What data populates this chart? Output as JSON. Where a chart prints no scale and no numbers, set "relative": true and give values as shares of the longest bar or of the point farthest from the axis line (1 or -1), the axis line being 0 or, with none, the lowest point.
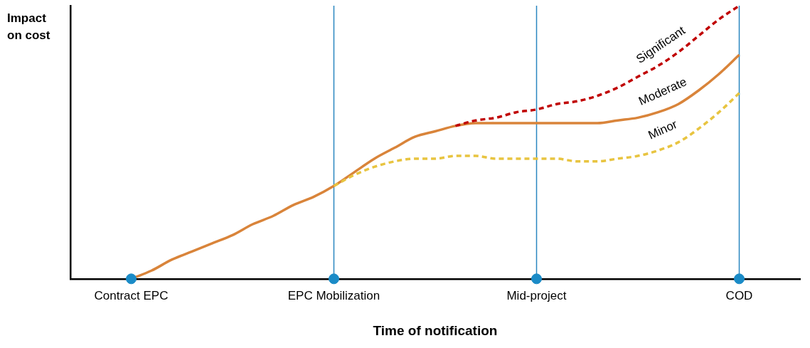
{
  "chart_data": {
    "type": "line",
    "relative": true,
    "xlabel": "Time of notification",
    "ylabel": "Impact on cost",
    "categories": [
      null,
      null,
      null,
      "Contract EPC",
      null,
      null,
      null,
      null,
      null,
      null,
      null,
      null,
      null,
      "EPC Mobilization",
      null,
      null,
      null,
      null,
      null,
      null,
      null,
      null,
      null,
      "Mid-project",
      null,
      null,
      null,
      null,
      null,
      null,
      null,
      null,
      null,
      "COD",
      null,
      null,
      null
    ],
    "ref_lines": [
      {
        "axis": "x",
        "value": "EPC Mobilization",
        "color": "#2a86c0"
      },
      {
        "axis": "x",
        "value": "Mid-project",
        "color": "#2a86c0"
      },
      {
        "axis": "x",
        "value": "COD",
        "color": "#2a86c0"
      }
    ],
    "grid": false,
    "legend": false,
    "marker": "none",
    "series": [
      {
        "name": "Significant",
        "color": "#c00000",
        "line_style": "dashed",
        "values": [
          null,
          null,
          null,
          null,
          null,
          null,
          null,
          null,
          null,
          null,
          null,
          null,
          null,
          null,
          null,
          null,
          null,
          null,
          null,
          0.56,
          0.58,
          0.59,
          0.61,
          0.62,
          0.64,
          0.65,
          0.67,
          0.7,
          0.74,
          0.78,
          0.83,
          0.89,
          0.95,
          1.0,
          null,
          null,
          null
        ]
      },
      {
        "name": "Minor",
        "color": "#e8c440",
        "line_style": "dashed",
        "values": [
          null,
          null,
          null,
          null,
          null,
          null,
          null,
          null,
          null,
          null,
          null,
          null,
          null,
          0.34,
          0.38,
          0.41,
          0.43,
          0.44,
          0.44,
          0.45,
          0.45,
          0.44,
          0.44,
          0.44,
          0.44,
          0.43,
          0.43,
          0.44,
          0.45,
          0.47,
          0.5,
          0.55,
          0.61,
          0.68,
          null,
          null,
          null
        ]
      },
      {
        "name": "Moderate",
        "color": "#d9843a",
        "line_style": "solid",
        "values": [
          null,
          null,
          null,
          0,
          0.03,
          0.07,
          0.1,
          0.13,
          0.16,
          0.2,
          0.23,
          0.27,
          0.3,
          0.34,
          0.39,
          0.44,
          0.48,
          0.52,
          0.54,
          0.56,
          0.57,
          0.57,
          0.57,
          0.57,
          0.57,
          0.57,
          0.57,
          0.58,
          0.59,
          0.61,
          0.64,
          0.69,
          0.75,
          0.82,
          null,
          null,
          null
        ]
      },
      {
        "type": "scatter",
        "color": "#1a8bc7",
        "marker": "circle",
        "values": [
          null,
          null,
          null,
          0,
          null,
          null,
          null,
          null,
          null,
          null,
          null,
          null,
          null,
          0,
          null,
          null,
          null,
          null,
          null,
          null,
          null,
          null,
          null,
          0,
          null,
          null,
          null,
          null,
          null,
          null,
          null,
          null,
          null,
          0,
          null,
          null,
          null
        ]
      }
    ]
  }
}
